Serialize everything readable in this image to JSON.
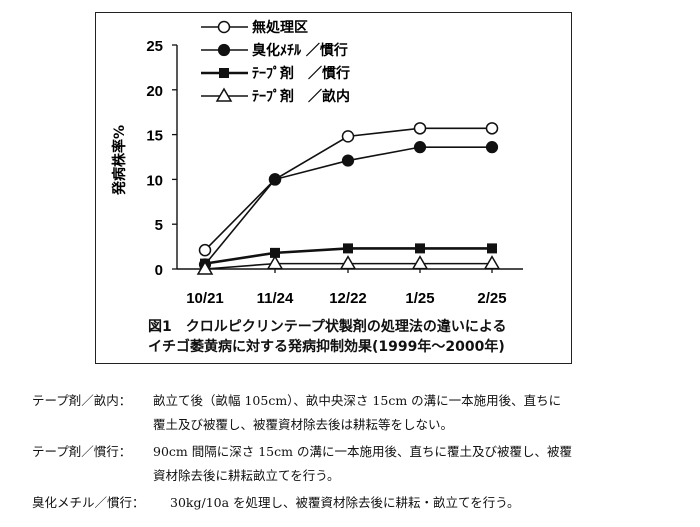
{
  "chart_data": {
    "type": "line",
    "title": "",
    "xlabel": "",
    "ylabel": "発病株率%",
    "categories": [
      "10/21",
      "11/24",
      "12/22",
      "1/25",
      "2/25"
    ],
    "ylim": [
      0,
      25
    ],
    "yticks": [
      0,
      5,
      10,
      15,
      20,
      25
    ],
    "grid": false,
    "legend_position": "top-left",
    "series": [
      {
        "name": "無処理区",
        "marker": "open-circle",
        "values": [
          2.1,
          10.0,
          14.8,
          15.7,
          15.7
        ]
      },
      {
        "name": "臭化ﾒﾁﾙ ／慣行",
        "marker": "filled-circle",
        "values": [
          0.5,
          10.0,
          12.1,
          13.6,
          13.6
        ]
      },
      {
        "name": "ﾃｰﾌﾟ剤　／慣行",
        "marker": "filled-square",
        "values": [
          0.6,
          1.8,
          2.3,
          2.3,
          2.3
        ]
      },
      {
        "name": "ﾃｰﾌﾟ剤　／畝内",
        "marker": "open-triangle",
        "values": [
          0.0,
          0.6,
          0.6,
          0.6,
          0.6
        ]
      }
    ]
  },
  "caption": {
    "line1": "図1　クロルピクリンテープ状製剤の処理法の違いによる",
    "line2": "イチゴ萎黄病に対する発病抑制効果(1999年～2000年)"
  },
  "notes": [
    {
      "label": "テープ剤／畝内：",
      "line1": "畝立て後（畝幅 105cm）、畝中央深さ 15cm の溝に一本施用後、直ちに",
      "line2": "覆土及び被覆し、被覆資材除去後は耕耘等をしない。"
    },
    {
      "label": "テープ剤／慣行：",
      "line1": "90cm 間隔に深さ 15cm の溝に一本施用後、直ちに覆土及び被覆し、被覆",
      "line2": "資材除去後に耕耘畝立てを行う。"
    },
    {
      "label": "臭化メチル／慣行：",
      "line1": "30kg/10a を処理し、被覆資材除去後に耕耘・畝立てを行う。",
      "line2": ""
    }
  ]
}
